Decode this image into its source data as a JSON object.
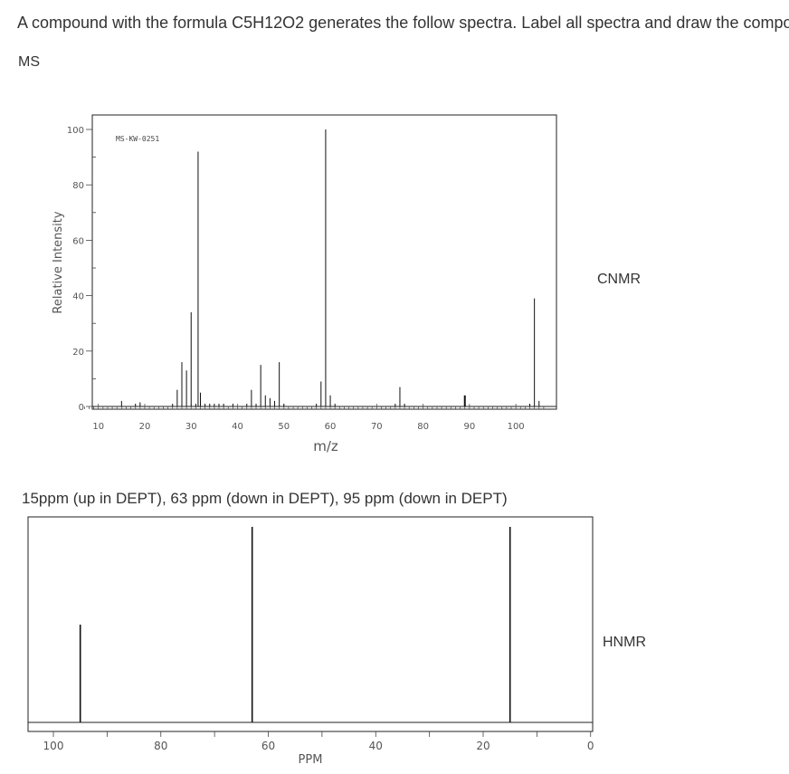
{
  "question_text": "A compound with the formula C5H12O2 generates the follow spectra. Label all spectra and draw the compo",
  "ms_heading": "MS",
  "cnmr_heading": "CNMR",
  "hnmr_heading": "HNMR",
  "cnmr_note": "15ppm (up in DEPT), 63 ppm (down in DEPT), 95 ppm (down in DEPT)",
  "chart_data": [
    {
      "type": "bar",
      "subtype": "mass-spectrum",
      "inner_label": "MS-KW-0251",
      "xlabel": "m/z",
      "ylabel": "Relative Intensity",
      "xlim": [
        6,
        107
      ],
      "ylim": [
        0,
        100
      ],
      "x_ticks": [
        10,
        20,
        30,
        40,
        50,
        60,
        70,
        80,
        90,
        100
      ],
      "y_ticks": [
        0,
        20,
        40,
        60,
        80,
        100
      ],
      "peaks": [
        {
          "mz": 15,
          "intensity": 2
        },
        {
          "mz": 18,
          "intensity": 1
        },
        {
          "mz": 19,
          "intensity": 1.5
        },
        {
          "mz": 26,
          "intensity": 1
        },
        {
          "mz": 27,
          "intensity": 6
        },
        {
          "mz": 28,
          "intensity": 16
        },
        {
          "mz": 29,
          "intensity": 13
        },
        {
          "mz": 30,
          "intensity": 34
        },
        {
          "mz": 31,
          "intensity": 1
        },
        {
          "mz": 32,
          "intensity": 5
        },
        {
          "mz": 33,
          "intensity": 1
        },
        {
          "mz": 34,
          "intensity": 1
        },
        {
          "mz": 35,
          "intensity": 1
        },
        {
          "mz": 36,
          "intensity": 1
        },
        {
          "mz": 37,
          "intensity": 1
        },
        {
          "mz": 39,
          "intensity": 1
        },
        {
          "mz": 42,
          "intensity": 1
        },
        {
          "mz": 43,
          "intensity": 6
        },
        {
          "mz": 44,
          "intensity": 1
        },
        {
          "mz": 45,
          "intensity": 15
        },
        {
          "mz": 46,
          "intensity": 4
        },
        {
          "mz": 47,
          "intensity": 3
        },
        {
          "mz": 48,
          "intensity": 2
        },
        {
          "mz": 31.5,
          "intensity": 92
        },
        {
          "mz": 49,
          "intensity": 16
        },
        {
          "mz": 50,
          "intensity": 1
        },
        {
          "mz": 57,
          "intensity": 1
        },
        {
          "mz": 58,
          "intensity": 9
        },
        {
          "mz": 59,
          "intensity": 100
        },
        {
          "mz": 60,
          "intensity": 4
        },
        {
          "mz": 61,
          "intensity": 1
        },
        {
          "mz": 74,
          "intensity": 1
        },
        {
          "mz": 75,
          "intensity": 7
        },
        {
          "mz": 76,
          "intensity": 1
        },
        {
          "mz": 89,
          "intensity": 4
        },
        {
          "mz": 103,
          "intensity": 1
        },
        {
          "mz": 104,
          "intensity": 39
        },
        {
          "mz": 105,
          "intensity": 2
        }
      ]
    },
    {
      "type": "bar",
      "subtype": "13C-nmr",
      "xlabel": "PPM",
      "xlim": [
        105,
        0
      ],
      "x_ticks": [
        100,
        80,
        60,
        40,
        20,
        0
      ],
      "peaks": [
        {
          "ppm": 95,
          "height": 0.5
        },
        {
          "ppm": 63,
          "height": 1.0
        },
        {
          "ppm": 15,
          "height": 1.0
        }
      ]
    }
  ]
}
